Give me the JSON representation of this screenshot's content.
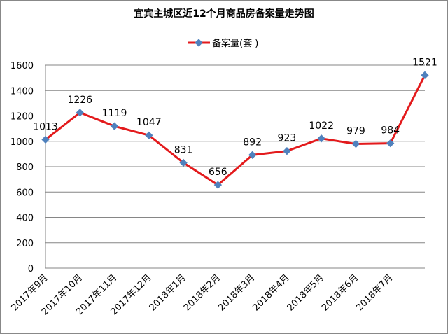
{
  "chart_data": {
    "type": "line",
    "title": "宜宾主城区近12个月商品房备案量走势图",
    "categories": [
      "2017年9月",
      "2017年10月",
      "2017年11月",
      "2017年12月",
      "2018年1月",
      "2018年2月",
      "2018年3月",
      "2018年4月",
      "2018年5月",
      "2018年6月",
      "2018年7月",
      null
    ],
    "series": [
      {
        "name": "备案量(套 )",
        "color": "#e31a1c",
        "marker_color": "#4f81bd",
        "values": [
          1013,
          1226,
          1119,
          1047,
          831,
          656,
          892,
          923,
          1022,
          979,
          984,
          1521
        ]
      }
    ],
    "ylim": [
      0,
      1600
    ],
    "yticks": [
      0,
      200,
      400,
      600,
      800,
      1000,
      1200,
      1400,
      1600
    ],
    "grid": true,
    "legend": "top"
  }
}
